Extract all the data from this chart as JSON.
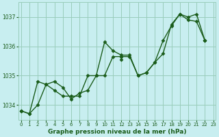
{
  "xlabel": "Graphe pression niveau de la mer (hPa)",
  "bg_color": "#c8eef0",
  "grid_color": "#99ccbb",
  "line_color": "#1a5c1a",
  "marker": "D",
  "markersize": 2.5,
  "linewidth": 1.0,
  "xlim": [
    -0.3,
    23.3
  ],
  "ylim": [
    1033.5,
    1037.5
  ],
  "yticks": [
    1034,
    1035,
    1036,
    1037
  ],
  "xticks": [
    0,
    1,
    2,
    3,
    4,
    5,
    6,
    7,
    8,
    9,
    10,
    11,
    12,
    13,
    14,
    15,
    16,
    17,
    18,
    19,
    20,
    21,
    22,
    23
  ],
  "series1": [
    1033.8,
    1033.7,
    1034.0,
    1034.7,
    1034.8,
    1034.6,
    1034.2,
    1034.4,
    1034.5,
    1035.0,
    1036.15,
    1035.85,
    1035.7,
    1035.7,
    1035.0,
    1035.1,
    1035.45,
    1035.75,
    1036.75,
    1037.1,
    1037.0,
    1037.1,
    1036.2,
    null
  ],
  "series2": [
    1033.8,
    1033.7,
    1034.8,
    1034.7,
    1034.5,
    1034.3,
    1034.3,
    1034.3,
    1035.0,
    1035.0,
    1035.0,
    1035.65,
    1035.65,
    1035.65,
    1035.0,
    1035.1,
    1035.45,
    1036.2,
    1036.7,
    1037.1,
    1036.9,
    1036.85,
    1036.2,
    null
  ],
  "series3": [
    1033.8,
    null,
    null,
    null,
    null,
    null,
    null,
    null,
    null,
    null,
    null,
    null,
    1035.55,
    null,
    null,
    null,
    null,
    null,
    null,
    1037.1,
    null,
    null,
    1036.2,
    null
  ]
}
